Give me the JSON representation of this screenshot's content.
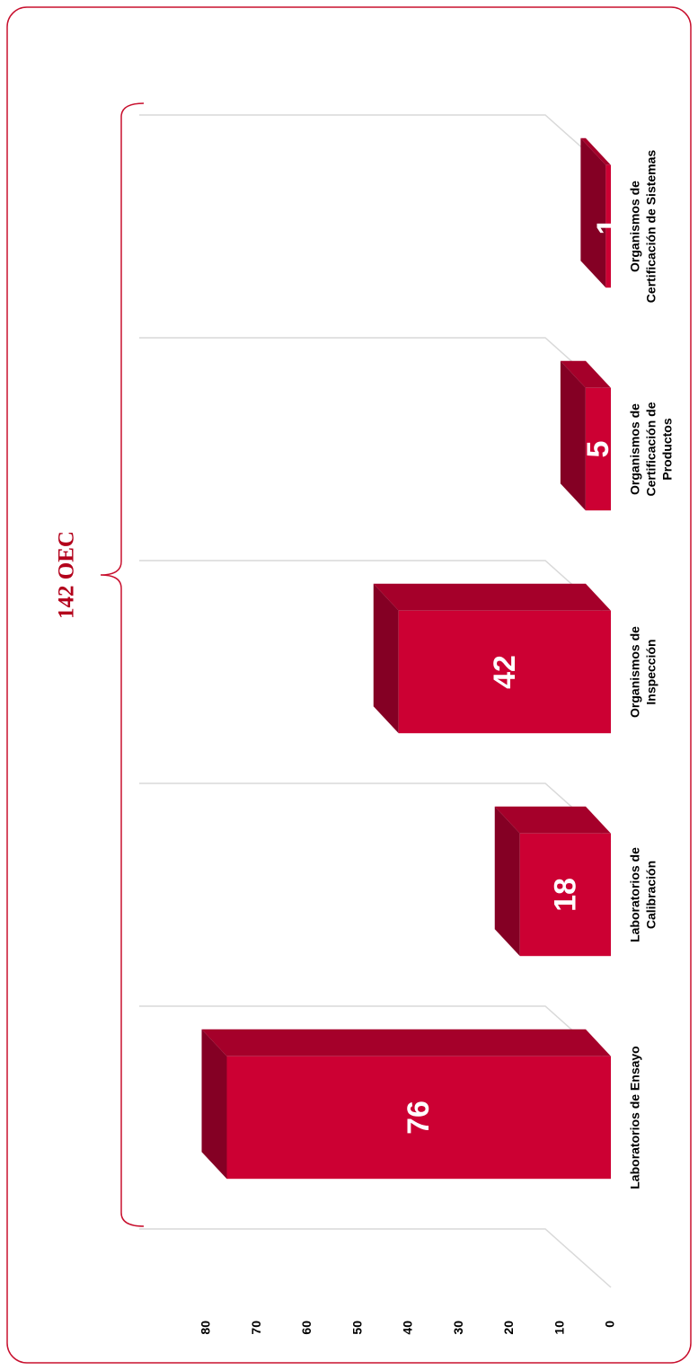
{
  "chart_data": {
    "type": "bar3d",
    "title": "142 OEC",
    "categories": [
      [
        "Laboratorios de Ensayo"
      ],
      [
        "Laboratorios de",
        "Calibración"
      ],
      [
        "Organismos de",
        "Inspección"
      ],
      [
        "Organismos de",
        "Certificación de",
        "Productos"
      ],
      [
        "Organismos de",
        "Certificación de Sistemas"
      ]
    ],
    "values": [
      76,
      18,
      42,
      5,
      1
    ],
    "color": "#cc0033",
    "ylim": [
      0,
      80
    ],
    "yticks": [
      0,
      10,
      20,
      30,
      40,
      50,
      60,
      70,
      80
    ]
  }
}
